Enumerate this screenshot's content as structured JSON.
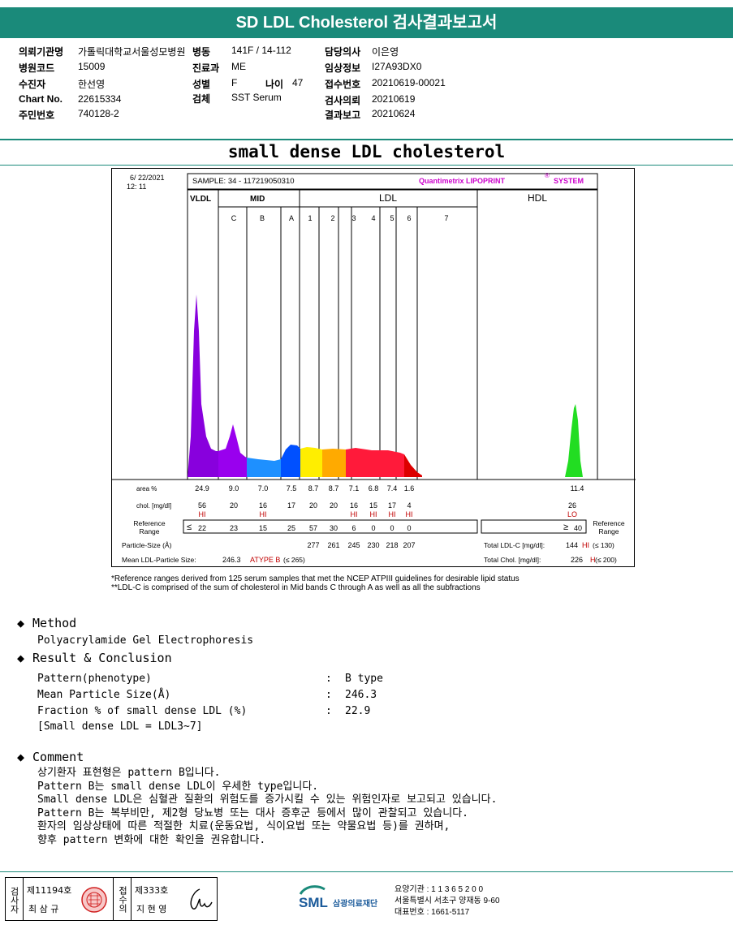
{
  "header": {
    "title": "SD LDL Cholesterol 검사결과보고서"
  },
  "info": {
    "col1": [
      {
        "label": "의뢰기관명",
        "value": "가톨릭대학교서울성모병원"
      },
      {
        "label": "병원코드",
        "value": "15009"
      },
      {
        "label": "수진자",
        "value": "한선영"
      },
      {
        "label": "Chart No.",
        "value": "22615334"
      },
      {
        "label": "주민번호",
        "value": "740128-2"
      }
    ],
    "col2": [
      {
        "label": "병동",
        "value": "141F / 14-112"
      },
      {
        "label": "진료과",
        "value": "ME"
      },
      {
        "label": "성별",
        "value": "F"
      },
      {
        "label": "검체",
        "value": "SST Serum"
      }
    ],
    "age_label": "나이",
    "age_value": "47",
    "col3": [
      {
        "label": "담당의사",
        "value": "이은영"
      },
      {
        "label": "임상정보",
        "value": "I27A93DX0"
      },
      {
        "label": "접수번호",
        "value": "20210619-00021"
      },
      {
        "label": "검사의뢰",
        "value": "20210619"
      },
      {
        "label": "결과보고",
        "value": "20210624"
      }
    ]
  },
  "report_title": "small dense LDL cholesterol",
  "chart": {
    "date": "6/ 22/2021",
    "time": "12: 11",
    "sample": "SAMPLE:   34 - 117219050310",
    "brand": "Quantimetrix LIPOPRINT",
    "brand_reg": "®",
    "brand_sys": "SYSTEM",
    "groups": {
      "vldl": "VLDL",
      "mid": "MID",
      "ldl": "LDL",
      "hdl": "HDL"
    },
    "bands": [
      "C",
      "B",
      "A",
      "1",
      "2",
      "3",
      "4",
      "5",
      "6",
      "7"
    ],
    "row_labels": {
      "area": "area %",
      "chol": "chol. [mg/dl]",
      "ref": "Reference\nRange",
      "psize": "Particle-Size (Å)",
      "mean": "Mean LDL-Particle Size:"
    },
    "area": [
      "24.9",
      "9.0",
      "7.0",
      "7.5",
      "8.7",
      "8.7",
      "7.1",
      "6.8",
      "7.4",
      "1.6"
    ],
    "chol": [
      "56",
      "20",
      "16",
      "17",
      "20",
      "20",
      "16",
      "15",
      "17",
      "4"
    ],
    "chol_flags": [
      "HI",
      "",
      "HI",
      "",
      "",
      "",
      "HI",
      "HI",
      "HI",
      "HI"
    ],
    "ref_le": "≤",
    "ref": [
      "22",
      "23",
      "15",
      "25",
      "57",
      "30",
      "6",
      "0",
      "0",
      "0"
    ],
    "psize": [
      "277",
      "261",
      "245",
      "230",
      "218",
      "207"
    ],
    "mean_value": "246.3",
    "mean_type": "ATYPE B",
    "mean_ref": "(≤ 265)",
    "hdl_area": "11.4",
    "hdl_chol": "26",
    "hdl_flag": "LO",
    "hdl_ref_ge": "≥",
    "hdl_ref": "40",
    "ref_right": "Reference\nRange",
    "total_ldl_label": "Total LDL-C [mg/dl]:",
    "total_ldl": "144",
    "total_ldl_flag": "HI",
    "total_ldl_ref": "(≤ 130)",
    "total_chol_label": "Total Chol. [mg/dl]:",
    "total_chol": "226",
    "total_chol_flag": "H",
    "total_chol_ref": "(≤ 200)",
    "colors": {
      "purple": "#8800dd",
      "violet": "#9900ee",
      "blue": "#1e90ff",
      "darkblue": "#0050ff",
      "yellow": "#ffee00",
      "orange": "#ffaa00",
      "red": "#ff1a3a",
      "darkred": "#dd0000",
      "green": "#22dd22",
      "flag": "#c00000",
      "brand": "#cc00cc"
    }
  },
  "notes": [
    "*Reference ranges derived from 125 serum samples that met the NCEP ATPIII guidelines for desirable lipid status",
    "**LDL-C is comprised of the sum of cholesterol in Mid bands C through A as well as all the subfractions"
  ],
  "method": {
    "heading": "Method",
    "text": "Polyacrylamide Gel Electrophoresis"
  },
  "result": {
    "heading": "Result & Conclusion",
    "rows": [
      {
        "label": "Pattern(phenotype)",
        "sep": ":",
        "value": "B type"
      },
      {
        "label": "Mean Particle Size(Å)",
        "sep": ":",
        "value": "246.3"
      },
      {
        "label": "Fraction % of small dense LDL (%)",
        "sep": ":",
        "value": "22.9"
      }
    ],
    "note": "[Small dense LDL = LDL3~7]"
  },
  "comment": {
    "heading": "Comment",
    "lines": [
      "상기환자 표현형은 pattern B입니다.",
      "Pattern B는 small dense LDL이 우세한 type입니다.",
      "Small dense LDL은 심혈관 질환의 위험도를 증가시킬 수 있는 위험인자로 보고되고 있습니다.",
      "Pattern B는 복부비만, 제2형 당뇨병 또는 대사 증후군 등에서 많이 관찰되고 있습니다.",
      "환자의 임상상태에 따른 적절한 치료(운동요법, 식이요법 또는 약물요법 등)를 권하며,",
      "향후 pattern 변화에 대한 확인을 권유합니다."
    ]
  },
  "footer": {
    "exam_label": "검사자",
    "exam_no": "제11194호",
    "exam_name": "최 삼 규",
    "conf_label": "접수의",
    "conf_no": "제333호",
    "conf_name": "지 현 영",
    "logo": "SML",
    "org": "삼광의료재단",
    "addr1": "요양기관 : 1 1 3 6 5 2 0 0",
    "addr2": "서울특별시 서초구 양재동 9-60",
    "addr3": "대표번호 : 1661-5117"
  }
}
